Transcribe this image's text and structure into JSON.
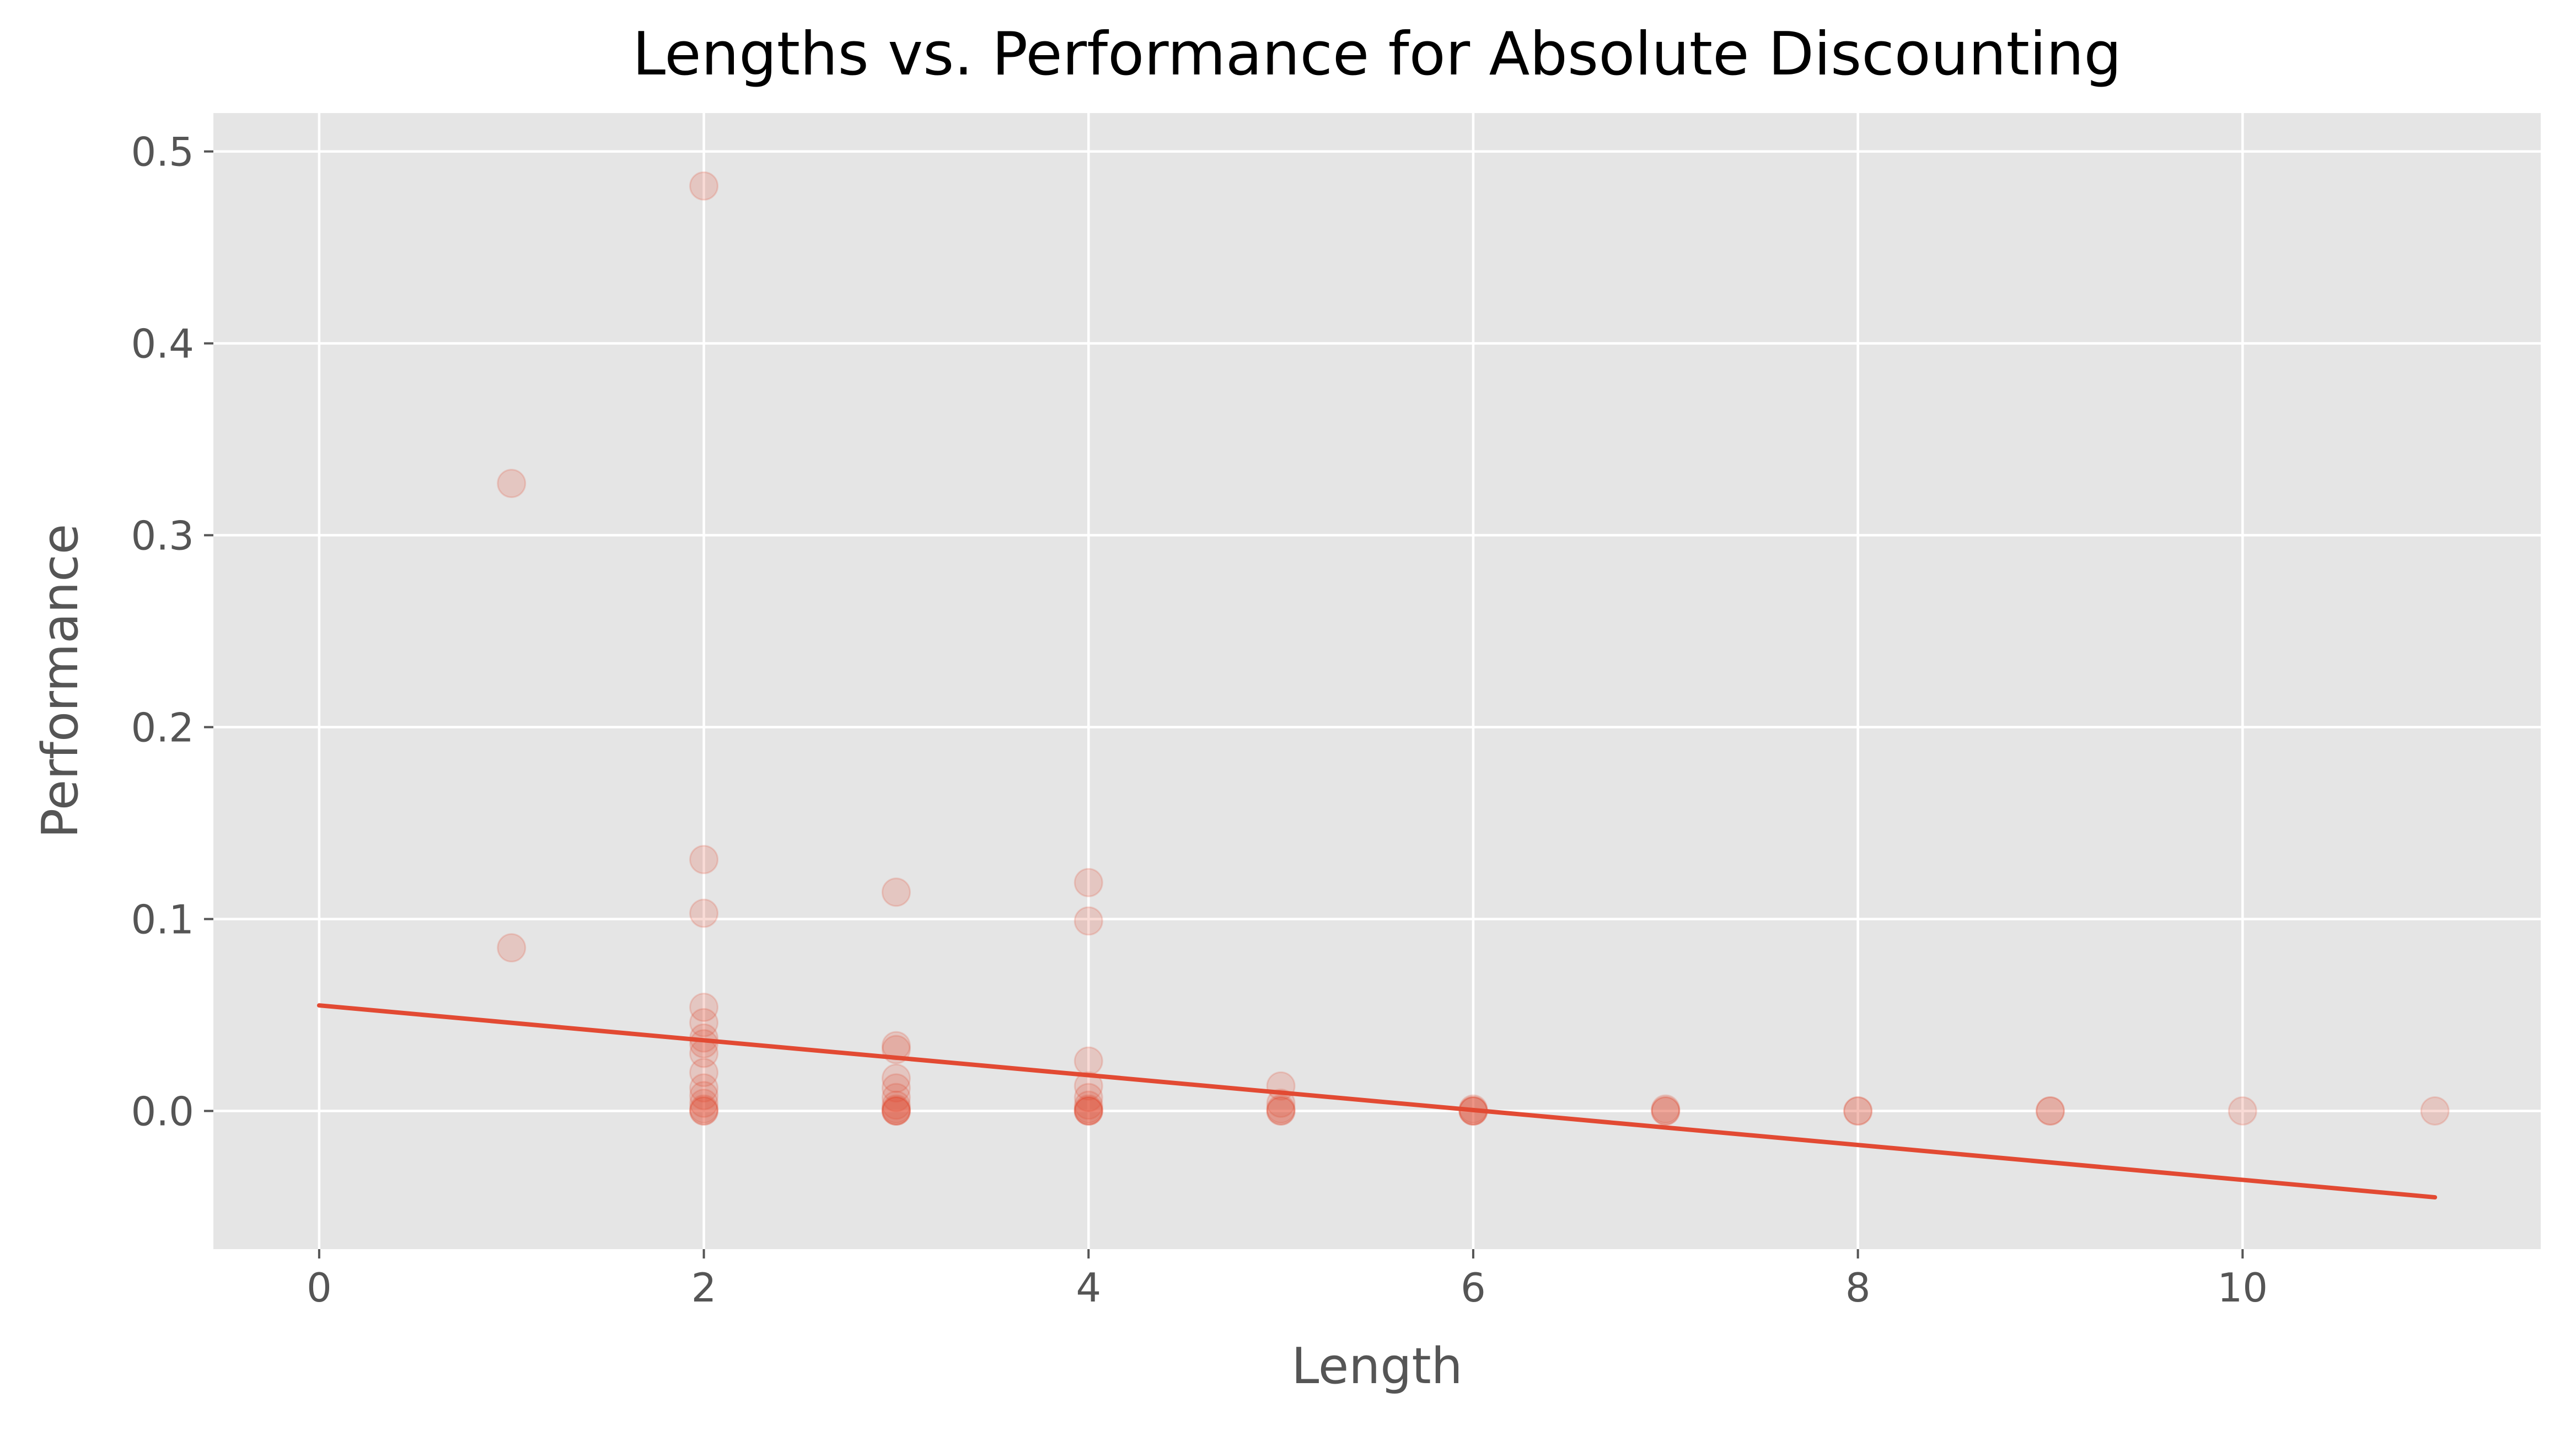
{
  "chart_data": {
    "type": "scatter",
    "title": "Lengths vs. Performance for Absolute Discounting",
    "xlabel": "Length",
    "ylabel": "Performance",
    "xlim": [
      -0.55,
      11.55
    ],
    "ylim": [
      -0.072,
      0.52
    ],
    "xticks": [
      0,
      2,
      4,
      6,
      8,
      10
    ],
    "yticks": [
      0.0,
      0.1,
      0.2,
      0.3,
      0.4,
      0.5
    ],
    "xtick_labels": [
      "0",
      "2",
      "4",
      "6",
      "8",
      "10"
    ],
    "ytick_labels": [
      "0.0",
      "0.1",
      "0.2",
      "0.3",
      "0.4",
      "0.5"
    ],
    "grid": true,
    "colors": {
      "plot_background": "#e5e5e5",
      "grid": "#ffffff",
      "points": "#e24a33",
      "fit_line": "#e24a33",
      "tick_label": "#555555",
      "axis_label": "#555555",
      "title": "#000000"
    },
    "points": [
      {
        "x": 1,
        "y": 0.327
      },
      {
        "x": 1,
        "y": 0.085
      },
      {
        "x": 2,
        "y": 0.482
      },
      {
        "x": 2,
        "y": 0.131
      },
      {
        "x": 2,
        "y": 0.103
      },
      {
        "x": 2,
        "y": 0.054
      },
      {
        "x": 2,
        "y": 0.046
      },
      {
        "x": 2,
        "y": 0.038
      },
      {
        "x": 2,
        "y": 0.035
      },
      {
        "x": 2,
        "y": 0.03
      },
      {
        "x": 2,
        "y": 0.02
      },
      {
        "x": 2,
        "y": 0.012
      },
      {
        "x": 2,
        "y": 0.008
      },
      {
        "x": 2,
        "y": 0.004
      },
      {
        "x": 2,
        "y": 0.001
      },
      {
        "x": 2,
        "y": 0.0
      },
      {
        "x": 2,
        "y": 0.0
      },
      {
        "x": 3,
        "y": 0.114
      },
      {
        "x": 3,
        "y": 0.034
      },
      {
        "x": 3,
        "y": 0.032
      },
      {
        "x": 3,
        "y": 0.017
      },
      {
        "x": 3,
        "y": 0.012
      },
      {
        "x": 3,
        "y": 0.007
      },
      {
        "x": 3,
        "y": 0.003
      },
      {
        "x": 3,
        "y": 0.001
      },
      {
        "x": 3,
        "y": 0.0
      },
      {
        "x": 3,
        "y": 0.0
      },
      {
        "x": 3,
        "y": 0.0
      },
      {
        "x": 4,
        "y": 0.119
      },
      {
        "x": 4,
        "y": 0.099
      },
      {
        "x": 4,
        "y": 0.026
      },
      {
        "x": 4,
        "y": 0.013
      },
      {
        "x": 4,
        "y": 0.007
      },
      {
        "x": 4,
        "y": 0.003
      },
      {
        "x": 4,
        "y": 0.001
      },
      {
        "x": 4,
        "y": 0.0
      },
      {
        "x": 4,
        "y": 0.0
      },
      {
        "x": 4,
        "y": 0.0
      },
      {
        "x": 5,
        "y": 0.013
      },
      {
        "x": 5,
        "y": 0.004
      },
      {
        "x": 5,
        "y": 0.001
      },
      {
        "x": 5,
        "y": 0.0
      },
      {
        "x": 5,
        "y": 0.0
      },
      {
        "x": 6,
        "y": 0.001
      },
      {
        "x": 6,
        "y": 0.0
      },
      {
        "x": 6,
        "y": 0.0
      },
      {
        "x": 6,
        "y": 0.0
      },
      {
        "x": 7,
        "y": 0.001
      },
      {
        "x": 7,
        "y": 0.0
      },
      {
        "x": 7,
        "y": 0.0
      },
      {
        "x": 8,
        "y": 0.0
      },
      {
        "x": 8,
        "y": 0.0
      },
      {
        "x": 9,
        "y": 0.0
      },
      {
        "x": 9,
        "y": 0.0
      },
      {
        "x": 10,
        "y": 0.0
      },
      {
        "x": 11,
        "y": 0.0
      }
    ],
    "fit_line": [
      {
        "x": 0,
        "y": 0.055
      },
      {
        "x": 11,
        "y": -0.045
      }
    ]
  }
}
